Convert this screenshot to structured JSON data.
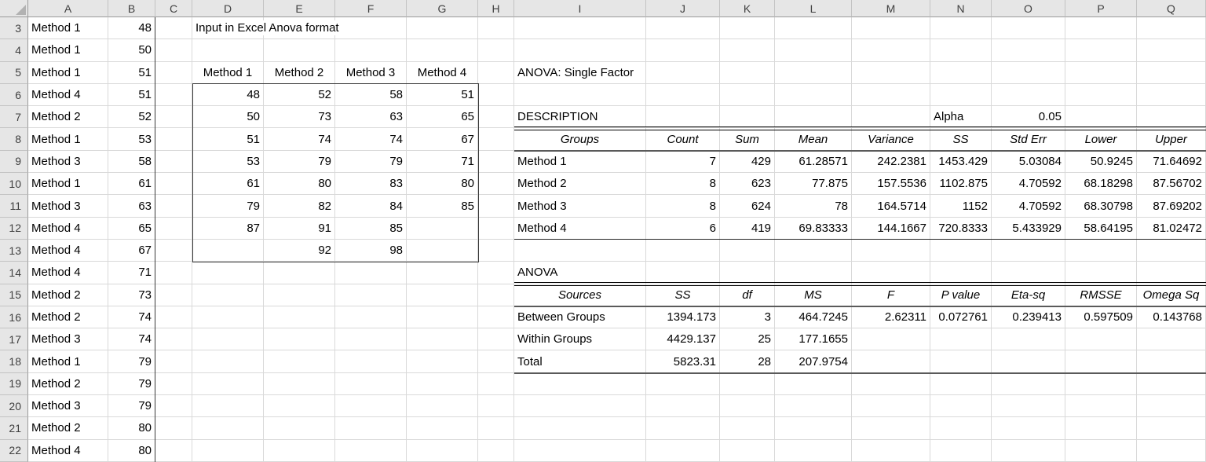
{
  "sheet": {
    "column_letters": [
      "A",
      "B",
      "C",
      "D",
      "E",
      "F",
      "G",
      "H",
      "I",
      "J",
      "K",
      "L",
      "M",
      "N",
      "O",
      "P",
      "Q"
    ],
    "row_numbers": [
      3,
      4,
      5,
      6,
      7,
      8,
      9,
      10,
      11,
      12,
      13,
      14,
      15,
      16,
      17,
      18,
      19,
      20,
      21,
      22
    ]
  },
  "left_data": {
    "rows": [
      [
        "Method 1",
        48
      ],
      [
        "Method 1",
        50
      ],
      [
        "Method 1",
        51
      ],
      [
        "Method 4",
        51
      ],
      [
        "Method 2",
        52
      ],
      [
        "Method 1",
        53
      ],
      [
        "Method 3",
        58
      ],
      [
        "Method 1",
        61
      ],
      [
        "Method 3",
        63
      ],
      [
        "Method 4",
        65
      ],
      [
        "Method 4",
        67
      ],
      [
        "Method 4",
        71
      ],
      [
        "Method 2",
        73
      ],
      [
        "Method 2",
        74
      ],
      [
        "Method 3",
        74
      ],
      [
        "Method 1",
        79
      ],
      [
        "Method 2",
        79
      ],
      [
        "Method 3",
        79
      ],
      [
        "Method 2",
        80
      ],
      [
        "Method 4",
        80
      ]
    ]
  },
  "input_table": {
    "title": "Input in Excel Anova format",
    "headers": [
      "Method 1",
      "Method 2",
      "Method 3",
      "Method 4"
    ],
    "rows": [
      [
        48,
        52,
        58,
        51
      ],
      [
        50,
        73,
        63,
        65
      ],
      [
        51,
        74,
        74,
        67
      ],
      [
        53,
        79,
        79,
        71
      ],
      [
        61,
        80,
        83,
        80
      ],
      [
        79,
        82,
        84,
        85
      ],
      [
        87,
        91,
        85,
        ""
      ],
      [
        "",
        92,
        98,
        ""
      ]
    ]
  },
  "anova_output": {
    "title": "ANOVA: Single Factor",
    "description": {
      "label": "DESCRIPTION",
      "alpha_label": "Alpha",
      "alpha_value": "0.05",
      "headers": [
        "Groups",
        "Count",
        "Sum",
        "Mean",
        "Variance",
        "SS",
        "Std Err",
        "Lower",
        "Upper"
      ],
      "rows": [
        [
          "Method 1",
          "7",
          "429",
          "61.28571",
          "242.2381",
          "1453.429",
          "5.03084",
          "50.9245",
          "71.64692"
        ],
        [
          "Method 2",
          "8",
          "623",
          "77.875",
          "157.5536",
          "1102.875",
          "4.70592",
          "68.18298",
          "87.56702"
        ],
        [
          "Method 3",
          "8",
          "624",
          "78",
          "164.5714",
          "1152",
          "4.70592",
          "68.30798",
          "87.69202"
        ],
        [
          "Method 4",
          "6",
          "419",
          "69.83333",
          "144.1667",
          "720.8333",
          "5.433929",
          "58.64195",
          "81.02472"
        ]
      ]
    },
    "anova": {
      "label": "ANOVA",
      "headers": [
        "Sources",
        "SS",
        "df",
        "MS",
        "F",
        "P value",
        "Eta-sq",
        "RMSSE",
        "Omega Sq"
      ],
      "rows": [
        [
          "Between Groups",
          "1394.173",
          "3",
          "464.7245",
          "2.62311",
          "0.072761",
          "0.239413",
          "0.597509",
          "0.143768"
        ],
        [
          "Within Groups",
          "4429.137",
          "25",
          "177.1655",
          "",
          "",
          "",
          "",
          ""
        ],
        [
          "Total",
          "5823.31",
          "28",
          "207.9754",
          "",
          "",
          "",
          "",
          ""
        ]
      ]
    }
  },
  "colors": {
    "header_bg": "#e6e6e6",
    "gridline": "#d9d9d9",
    "range_border": "#3a3a3a",
    "rule_black": "#000000",
    "rule_gray": "#5a5a5a"
  }
}
